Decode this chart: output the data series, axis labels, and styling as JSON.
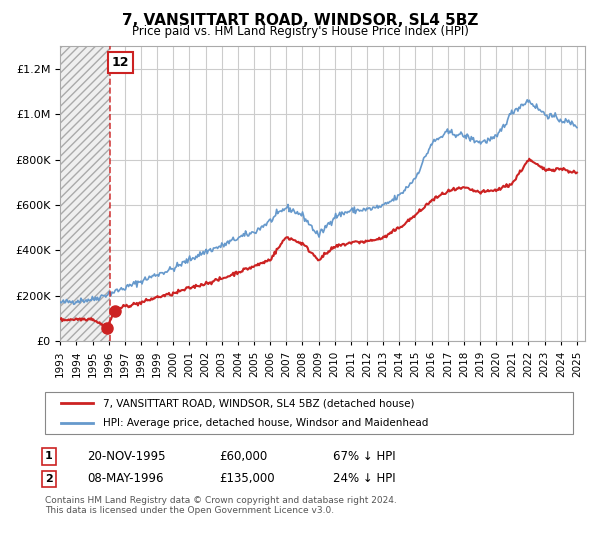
{
  "title": "7, VANSITTART ROAD, WINDSOR, SL4 5BZ",
  "subtitle": "Price paid vs. HM Land Registry's House Price Index (HPI)",
  "ylim": [
    0,
    1300000
  ],
  "xlim_start": 1993.0,
  "xlim_end": 2025.5,
  "hpi_color": "#6699cc",
  "price_color": "#cc2222",
  "grid_color": "#cccccc",
  "bg_color": "#ffffff",
  "transaction1_date": "20-NOV-1995",
  "transaction1_price": 60000,
  "transaction1_hpi": "67% ↓ HPI",
  "transaction1_x": 1995.89,
  "transaction2_date": "08-MAY-1996",
  "transaction2_price": 135000,
  "transaction2_hpi": "24% ↓ HPI",
  "transaction2_x": 1996.37,
  "vline_x": 1996.1,
  "label1": "7, VANSITTART ROAD, WINDSOR, SL4 5BZ (detached house)",
  "label2": "HPI: Average price, detached house, Windsor and Maidenhead",
  "footnote1": "Contains HM Land Registry data © Crown copyright and database right 2024.",
  "footnote2": "This data is licensed under the Open Government Licence v3.0.",
  "hpi_key_x": [
    1993,
    1994,
    1995,
    1996,
    1997,
    1998,
    1999,
    2000,
    2001,
    2002,
    2003,
    2004,
    2005,
    2006,
    2007,
    2008,
    2009,
    2010,
    2011,
    2012,
    2013,
    2014,
    2015,
    2016,
    2017,
    2018,
    2019,
    2020,
    2021,
    2022,
    2023,
    2024,
    2025
  ],
  "hpi_key_y": [
    170000,
    178000,
    185000,
    210000,
    235000,
    265000,
    295000,
    320000,
    360000,
    395000,
    420000,
    455000,
    480000,
    530000,
    590000,
    555000,
    465000,
    550000,
    575000,
    580000,
    595000,
    640000,
    720000,
    870000,
    920000,
    905000,
    875000,
    895000,
    1010000,
    1060000,
    1000000,
    975000,
    950000
  ],
  "price_key_x": [
    1993,
    1994,
    1995,
    1995.89,
    1996.37,
    1997,
    1998,
    1999,
    2000,
    2001,
    2002,
    2003,
    2004,
    2005,
    2006,
    2007,
    2008,
    2009,
    2010,
    2011,
    2012,
    2013,
    2014,
    2015,
    2016,
    2017,
    2018,
    2019,
    2020,
    2021,
    2022,
    2023,
    2024,
    2025
  ],
  "price_key_y": [
    95000,
    98000,
    100000,
    60000,
    135000,
    155000,
    170000,
    195000,
    210000,
    235000,
    255000,
    275000,
    305000,
    330000,
    360000,
    460000,
    430000,
    360000,
    415000,
    435000,
    440000,
    455000,
    500000,
    555000,
    620000,
    660000,
    675000,
    655000,
    665000,
    695000,
    800000,
    755000,
    760000,
    740000
  ]
}
